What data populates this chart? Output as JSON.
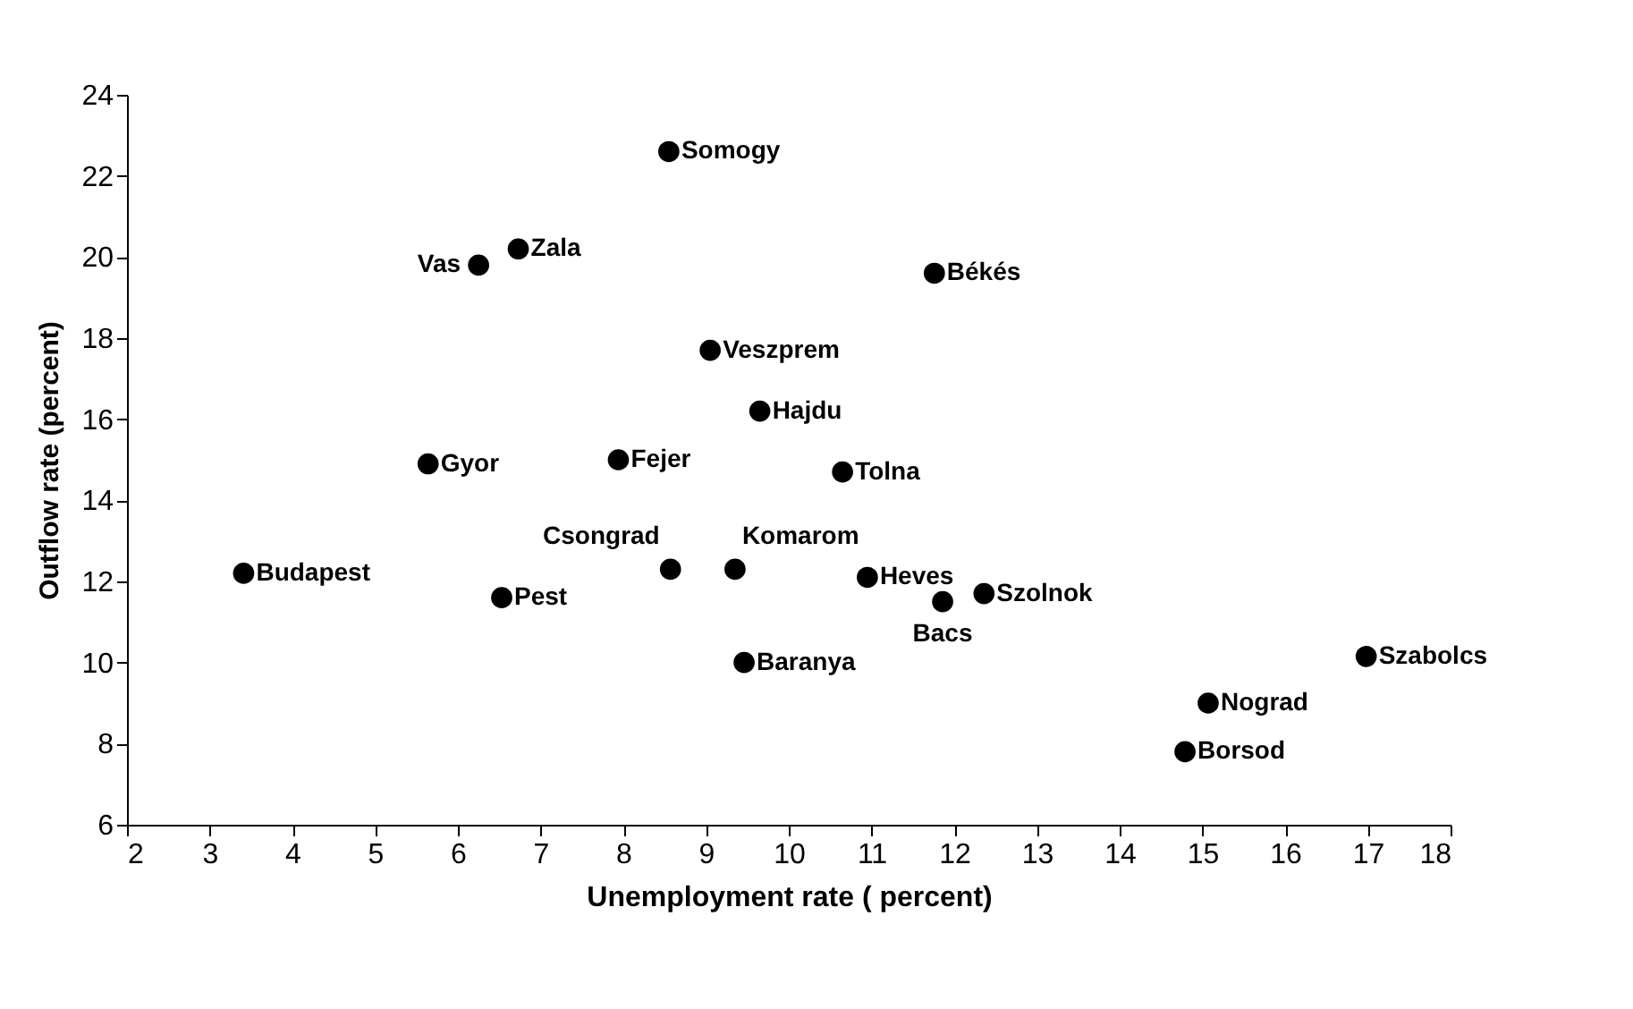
{
  "chart_data": {
    "type": "scatter",
    "xlabel": "Unemployment rate ( percent)",
    "ylabel": "Outflow  rate (percent)",
    "x": [
      8.55,
      6.73,
      6.25,
      11.76,
      9.05,
      9.65,
      5.64,
      7.94,
      10.65,
      3.41,
      8.57,
      9.35,
      10.95,
      12.36,
      11.86,
      6.53,
      9.46,
      16.98,
      15.07,
      14.79
    ],
    "series": [
      {
        "color": "#000000",
        "values": [
          22.6,
          20.2,
          19.8,
          19.6,
          17.7,
          16.2,
          14.9,
          15.0,
          14.7,
          12.2,
          12.3,
          12.3,
          12.1,
          11.7,
          11.5,
          11.6,
          10.0,
          10.15,
          9.0,
          7.8
        ],
        "value_labels": [
          "Somogy",
          "Zala",
          "Vas",
          "Békés",
          "Veszprem",
          "Hajdu",
          "Gyor",
          "Fejer",
          "Tolna",
          "Budapest",
          "Csongrad",
          "Komarom",
          "Heves",
          "Szolnok",
          "Bacs",
          "Pest",
          "Baranya",
          "Szabolcs",
          "Nograd",
          "Borsod"
        ]
      }
    ],
    "xlim": [
      2,
      18
    ],
    "xticks": [
      2,
      3,
      4,
      5,
      6,
      7,
      8,
      9,
      10,
      11,
      12,
      13,
      14,
      15,
      16,
      17,
      18
    ],
    "ylim": [
      6,
      24
    ],
    "yticks": [
      6,
      8,
      10,
      12,
      14,
      16,
      18,
      20,
      22,
      24
    ],
    "grid": false,
    "marker": "circle"
  }
}
